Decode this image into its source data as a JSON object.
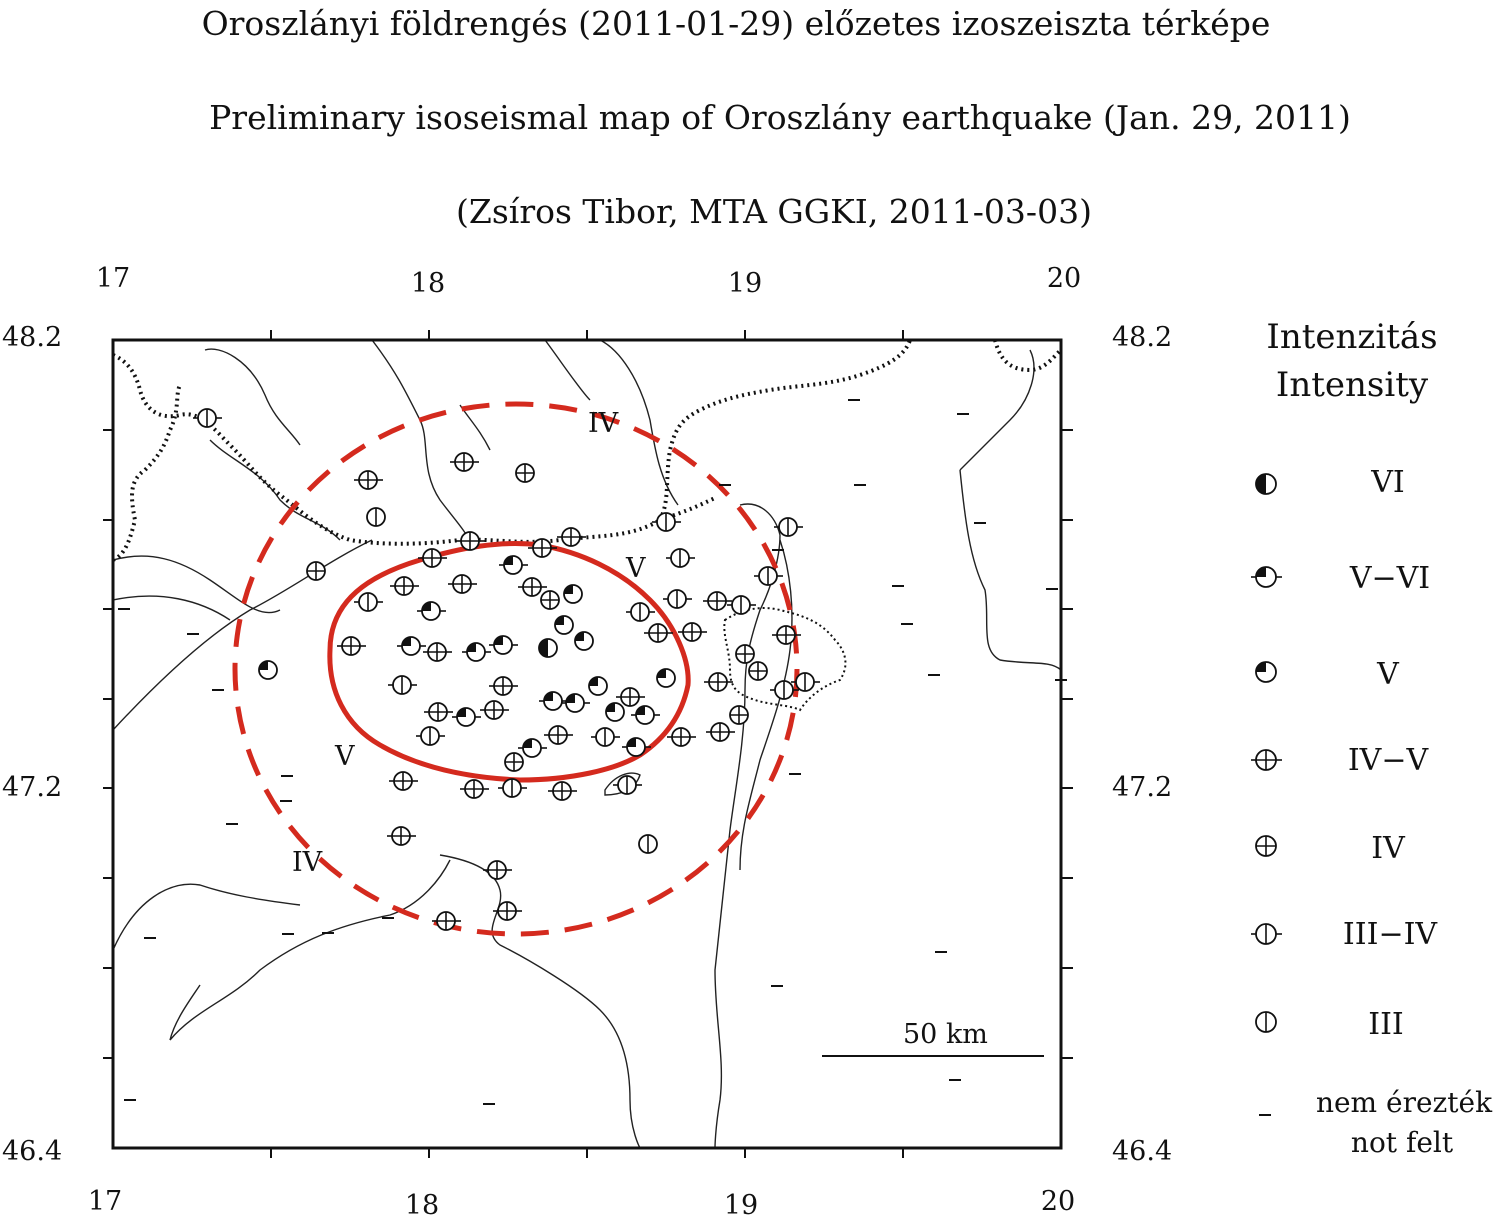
{
  "titles": {
    "hungarian": "Oroszlányi földrengés (2011-01-29) előzetes izoszeiszta térképe",
    "english": "Preliminary isoseismal map of Oroszlány earthquake (Jan. 29, 2011)",
    "credit": "(Zsíros Tibor, MTA GGKI, 2011-03-03)"
  },
  "axes": {
    "lon_ticks_top": [
      "17",
      "18",
      "19",
      "20"
    ],
    "lon_ticks_bottom": [
      "17",
      "18",
      "19",
      "20"
    ],
    "lat_ticks_left": [
      "48.2",
      "47.2",
      "46.4"
    ],
    "lat_ticks_right": [
      "48.2",
      "47.2",
      "46.4"
    ],
    "lon_range": [
      17,
      20
    ],
    "lat_range": [
      46.4,
      48.2
    ]
  },
  "map": {
    "isoseismal_labels": [
      "IV",
      "V",
      "V",
      "IV"
    ],
    "scale_bar": "50  km",
    "colors": {
      "isoseismal": "#d42a1e",
      "ink": "#111111"
    }
  },
  "legend": {
    "title_hu": "Intenzitás",
    "title_en": "Intensity",
    "items": [
      {
        "symbol": "half-filled",
        "label": "VI"
      },
      {
        "symbol": "three-quarter-dash",
        "label": "V−VI"
      },
      {
        "symbol": "three-quarter",
        "label": "V"
      },
      {
        "symbol": "cross-dash",
        "label": "IV−V"
      },
      {
        "symbol": "cross",
        "label": "IV"
      },
      {
        "symbol": "bar-dash",
        "label": "III−IV"
      },
      {
        "symbol": "bar",
        "label": "III"
      }
    ],
    "not_felt_hu": "nem érezték",
    "not_felt_en": "not felt"
  }
}
